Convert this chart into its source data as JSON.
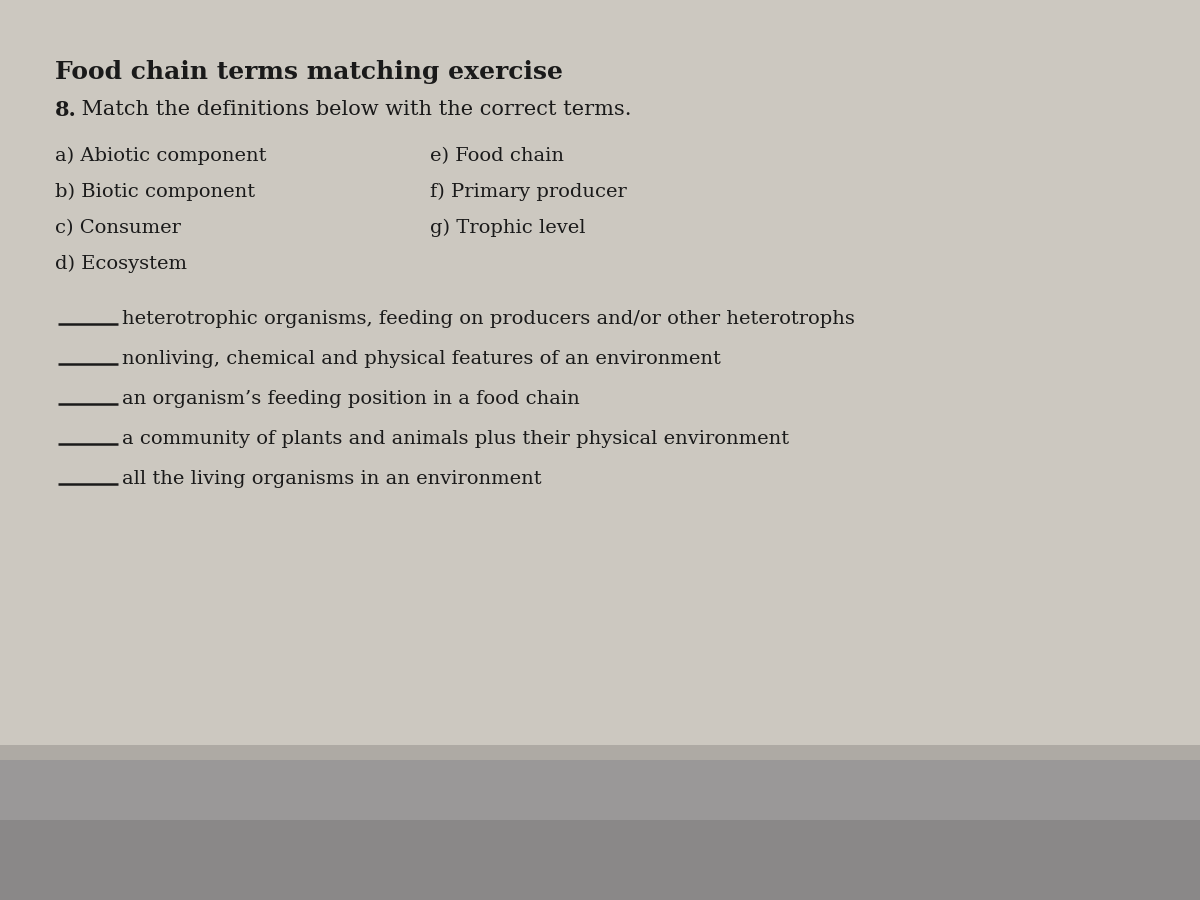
{
  "title": "Food chain terms matching exercise",
  "question_num": "8.",
  "question_text": " Match the definitions below with the correct terms.",
  "terms_left": [
    "a) Abiotic component",
    "b) Biotic component",
    "c) Consumer",
    "d) Ecosystem"
  ],
  "terms_right": [
    "e) Food chain",
    "f) Primary producer",
    "g) Trophic level"
  ],
  "definitions": [
    "heterotrophic organisms, feeding on producers and/or other heterotrophs",
    "nonliving, chemical and physical features of an environment",
    "an organism’s feeding position in a food chain",
    "a community of plants and animals plus their physical environment",
    "all the living organisms in an environment"
  ],
  "bg_color": "#ccc8c0",
  "bg_color2": "#b8b4ac",
  "text_main_color": "#1a1a1a",
  "title_fontsize": 18,
  "question_fontsize": 15,
  "terms_fontsize": 14,
  "def_fontsize": 14,
  "line_color": "#1a1a1a",
  "line_width": 1.8,
  "bottom_bar_color": "#9a9898",
  "bottom_bar2_color": "#8a8888"
}
